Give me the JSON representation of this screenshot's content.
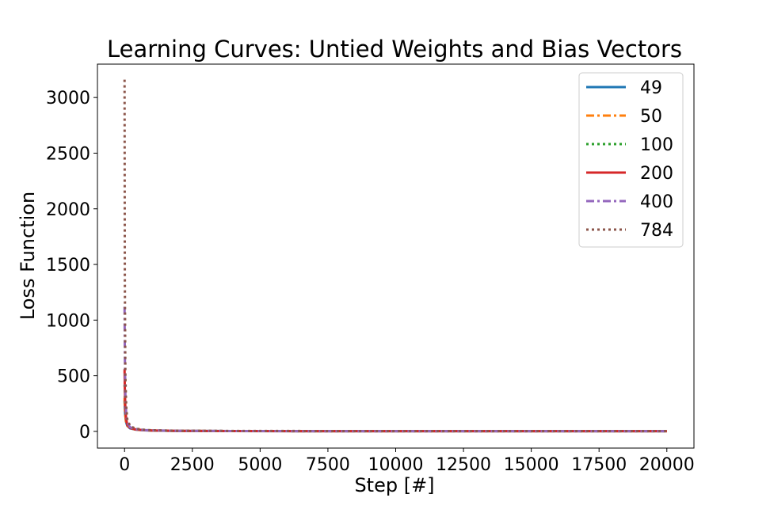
{
  "chart_data": {
    "type": "line",
    "title": "Learning Curves: Untied Weights and Bias Vectors",
    "xlabel": "Step [#]",
    "ylabel": "Loss Function",
    "xlim": [
      -1000,
      21000
    ],
    "ylim": [
      -150,
      3300
    ],
    "xticks": [
      0,
      2500,
      5000,
      7500,
      10000,
      12500,
      15000,
      17500,
      20000
    ],
    "xtick_labels": [
      "0",
      "2500",
      "5000",
      "7500",
      "10000",
      "12500",
      "15000",
      "17500",
      "20000"
    ],
    "yticks": [
      0,
      500,
      1000,
      1500,
      2000,
      2500,
      3000
    ],
    "ytick_labels": [
      "0",
      "500",
      "1000",
      "1500",
      "2000",
      "2500",
      "3000"
    ],
    "grid": false,
    "legend_position": "top-right",
    "series": [
      {
        "name": "49",
        "color": "#1f77b4",
        "linestyle": "solid",
        "x": [
          0,
          20,
          50,
          100,
          200,
          400,
          700,
          1000,
          2000,
          4000,
          8000,
          12000,
          16000,
          20000
        ],
        "y": [
          280,
          160,
          90,
          50,
          28,
          16,
          10,
          7,
          4,
          3,
          2,
          2,
          2,
          2
        ]
      },
      {
        "name": "50",
        "color": "#ff7f0e",
        "linestyle": "dashdot",
        "x": [
          0,
          20,
          50,
          100,
          200,
          400,
          700,
          1000,
          2000,
          4000,
          8000,
          12000,
          16000,
          20000
        ],
        "y": [
          300,
          170,
          95,
          52,
          30,
          17,
          11,
          8,
          4,
          3,
          2,
          2,
          2,
          2
        ]
      },
      {
        "name": "100",
        "color": "#2ca02c",
        "linestyle": "dotted",
        "x": [
          0,
          20,
          50,
          100,
          200,
          400,
          700,
          1000,
          2000,
          4000,
          8000,
          12000,
          16000,
          20000
        ],
        "y": [
          420,
          240,
          130,
          70,
          38,
          21,
          13,
          9,
          5,
          3,
          2,
          2,
          2,
          2
        ]
      },
      {
        "name": "200",
        "color": "#d62728",
        "linestyle": "solid",
        "x": [
          0,
          10,
          30,
          60,
          100,
          200,
          400,
          700,
          1000,
          2000,
          4000,
          8000,
          12000,
          16000,
          20000
        ],
        "y": [
          560,
          380,
          200,
          110,
          60,
          32,
          18,
          11,
          8,
          5,
          3,
          2,
          2,
          2,
          2
        ]
      },
      {
        "name": "400",
        "color": "#9467bd",
        "linestyle": "dashdot",
        "x": [
          0,
          10,
          30,
          60,
          100,
          200,
          400,
          700,
          1000,
          2000,
          4000,
          8000,
          12000,
          16000,
          20000
        ],
        "y": [
          1120,
          700,
          330,
          160,
          80,
          38,
          20,
          12,
          9,
          5,
          3,
          2,
          2,
          2,
          2
        ]
      },
      {
        "name": "784",
        "color": "#8c564b",
        "linestyle": "dotted",
        "x": [
          0,
          10,
          30,
          60,
          100,
          200,
          400,
          700,
          1000,
          2000,
          4000,
          8000,
          12000,
          16000,
          20000
        ],
        "y": [
          3160,
          1400,
          520,
          230,
          110,
          50,
          25,
          15,
          10,
          6,
          4,
          3,
          3,
          3,
          3
        ]
      }
    ]
  }
}
